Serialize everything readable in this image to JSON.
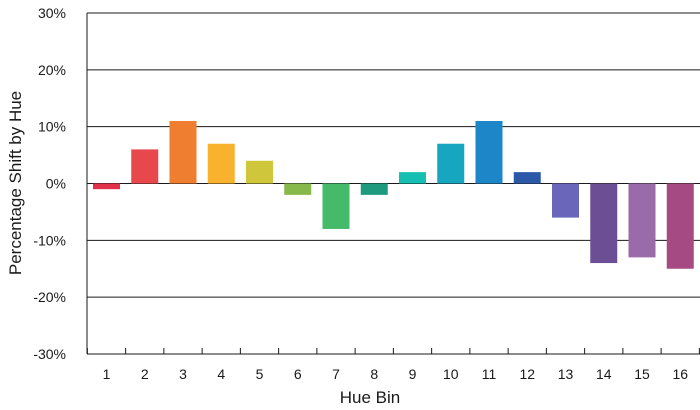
{
  "chart_data": {
    "type": "bar",
    "title": "",
    "xlabel": "Hue Bin",
    "ylabel": "Percentage Shift by Hue",
    "ylim": [
      -30,
      30
    ],
    "yticks": [
      -30,
      -20,
      -10,
      0,
      10,
      20,
      30
    ],
    "ytick_labels": [
      "-30%",
      "-20%",
      "-10%",
      "0%",
      "10%",
      "20%",
      "30%"
    ],
    "grid": "horizontal",
    "categories": [
      "1",
      "2",
      "3",
      "4",
      "5",
      "6",
      "7",
      "8",
      "9",
      "10",
      "11",
      "12",
      "13",
      "14",
      "15",
      "16"
    ],
    "values": [
      -1,
      6,
      11,
      7,
      4,
      -2,
      -8,
      -2,
      2,
      7,
      11,
      2,
      -6,
      -14,
      -13,
      -15
    ],
    "colors": [
      "#e0304a",
      "#e8474c",
      "#ef7e31",
      "#f8b22e",
      "#cfc63b",
      "#86b94a",
      "#45bb69",
      "#1e9a7e",
      "#15bfb1",
      "#17a6c0",
      "#1d86c8",
      "#2b59a8",
      "#6a66b9",
      "#6b4e94",
      "#9b6aa8",
      "#a54a82"
    ]
  }
}
